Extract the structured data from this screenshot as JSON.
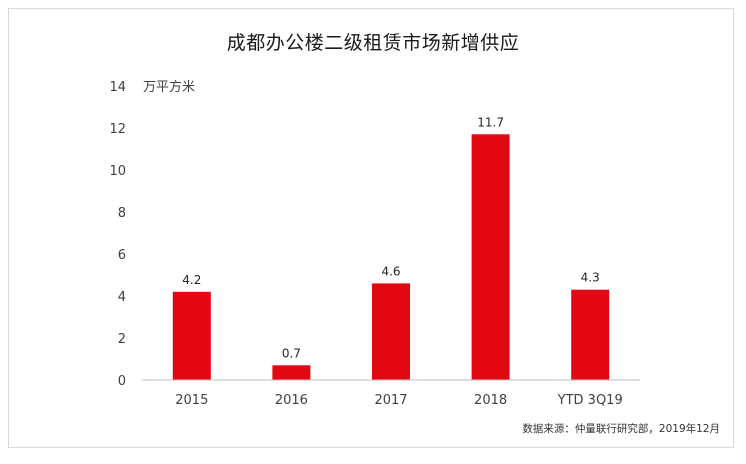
{
  "chart_data": {
    "type": "bar",
    "title": "成都办公楼二级租赁市场新增供应",
    "ylabel": "万平方米",
    "xlabel": "",
    "categories": [
      "2015",
      "2016",
      "2017",
      "2018",
      "YTD 3Q19"
    ],
    "values": [
      4.2,
      0.7,
      4.6,
      11.7,
      4.3
    ],
    "data_labels": [
      "4.2",
      "0.7",
      "4.6",
      "11.7",
      "4.3"
    ],
    "ylim": [
      0,
      14
    ],
    "yticks": [
      "0",
      "2",
      "4",
      "6",
      "8",
      "10",
      "12",
      "14"
    ],
    "grid": false,
    "legend": "none",
    "bar_color": "#e30613",
    "source": "数据来源：仲量联行研究部，2019年12月"
  }
}
